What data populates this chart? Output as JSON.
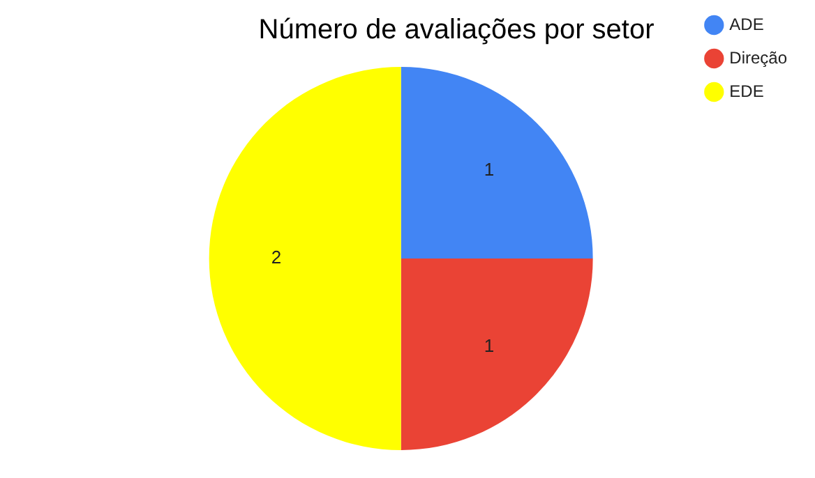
{
  "chart_data": {
    "type": "pie",
    "title": "Número de avaliações por setor",
    "categories": [
      "ADE",
      "Direção",
      "EDE"
    ],
    "values": [
      1,
      1,
      2
    ],
    "colors": [
      "#4285f4",
      "#ea4335",
      "#ffff00"
    ],
    "data_labels": true,
    "legend": "top right"
  }
}
